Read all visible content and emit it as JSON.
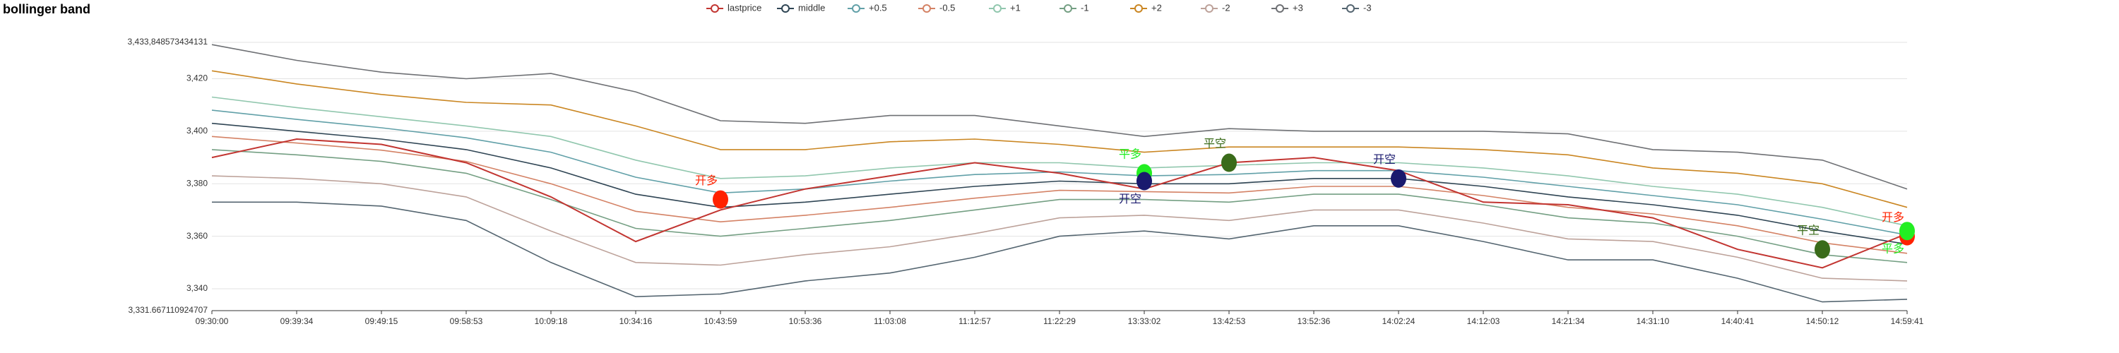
{
  "chart_data": {
    "type": "line",
    "title": "bollinger band",
    "categories": [
      "09:30:00",
      "09:39:34",
      "09:49:15",
      "09:58:53",
      "10:09:18",
      "10:34:16",
      "10:43:59",
      "10:53:36",
      "11:03:08",
      "11:12:57",
      "11:22:29",
      "13:33:02",
      "13:42:53",
      "13:52:36",
      "14:02:24",
      "14:12:03",
      "14:21:34",
      "14:31:10",
      "14:40:41",
      "14:50:12",
      "14:59:41"
    ],
    "ylim": [
      3331.667110924707,
      3433.848573434131
    ],
    "yticks": [
      {
        "value": 3331.667110924707,
        "label": "3,331.667110924707"
      },
      {
        "value": 3340,
        "label": "3,340"
      },
      {
        "value": 3360,
        "label": "3,360"
      },
      {
        "value": 3380,
        "label": "3,380"
      },
      {
        "value": 3400,
        "label": "3,400"
      },
      {
        "value": 3420,
        "label": "3,420"
      },
      {
        "value": 3433.848573434131,
        "label": "3,433,848573434131"
      }
    ],
    "grid": true,
    "series": [
      {
        "name": "lastprice",
        "color": "#c23531",
        "values": [
          3390,
          3397,
          3395,
          3388,
          3375,
          3358,
          3370,
          3378,
          3383,
          3388,
          3384,
          3378,
          3388,
          3390,
          3385,
          3373,
          3372,
          3367,
          3355,
          3348,
          3361
        ]
      },
      {
        "name": "middle",
        "color": "#2f4554",
        "values": [
          3403,
          3400,
          3397,
          3393,
          3386,
          3376,
          3371,
          3373,
          3376,
          3379,
          3381,
          3380,
          3380,
          3382,
          3382,
          3379,
          3375,
          3372,
          3368,
          3362,
          3357
        ]
      },
      {
        "name": "+0.5",
        "color": "#61a0a8",
        "values": [
          3408,
          3404.5,
          3401.3,
          3397.5,
          3392,
          3382.5,
          3376.5,
          3378,
          3381,
          3383.5,
          3384.5,
          3383,
          3383.5,
          3385,
          3385,
          3382.5,
          3379,
          3375.5,
          3372,
          3366.5,
          3360.5
        ]
      },
      {
        "name": "-0.5",
        "color": "#d48265",
        "values": [
          3398,
          3395.5,
          3392.8,
          3388.5,
          3380,
          3369.5,
          3365.5,
          3368,
          3371,
          3374.5,
          3377.5,
          3377,
          3376.5,
          3379,
          3379,
          3375.5,
          3371,
          3368.5,
          3364,
          3357.5,
          3353.5
        ]
      },
      {
        "name": "+1",
        "color": "#91c7ae",
        "values": [
          3413,
          3409,
          3405.5,
          3402,
          3398,
          3389,
          3382,
          3383,
          3386,
          3388,
          3388,
          3386,
          3387,
          3388,
          3388,
          3386,
          3383,
          3379,
          3376,
          3371,
          3364
        ]
      },
      {
        "name": "-1",
        "color": "#749f83",
        "values": [
          3393,
          3391,
          3388.5,
          3384,
          3374,
          3363,
          3360,
          3363,
          3366,
          3370,
          3374,
          3374,
          3373,
          3376,
          3376,
          3372,
          3367,
          3365,
          3360,
          3353,
          3350
        ]
      },
      {
        "name": "+2",
        "color": "#ca8622",
        "values": [
          3423,
          3418,
          3414,
          3411,
          3410,
          3402,
          3393,
          3393,
          3396,
          3397,
          3395,
          3392,
          3394,
          3394,
          3394,
          3393,
          3391,
          3386,
          3384,
          3380,
          3371
        ]
      },
      {
        "name": "-2",
        "color": "#bda29a",
        "values": [
          3383,
          3382,
          3380,
          3375,
          3362,
          3350,
          3349,
          3353,
          3356,
          3361,
          3367,
          3368,
          3366,
          3370,
          3370,
          3365,
          3359,
          3358,
          3352,
          3344,
          3343
        ]
      },
      {
        "name": "+3",
        "color": "#6e7074",
        "values": [
          3433,
          3427,
          3422.5,
          3420,
          3422,
          3415,
          3404,
          3403,
          3406,
          3406,
          3402,
          3398,
          3401,
          3400,
          3400,
          3400,
          3399,
          3393,
          3392,
          3389,
          3378
        ]
      },
      {
        "name": "-3",
        "color": "#546570",
        "values": [
          3373,
          3373,
          3371.5,
          3366,
          3350,
          3337,
          3338,
          3343,
          3346,
          3352,
          3360,
          3362,
          3359,
          3364,
          3364,
          3358,
          3351,
          3351,
          3344,
          3335,
          3336
        ]
      }
    ],
    "annotations": [
      {
        "text": "开多",
        "x": "10:43:59",
        "y": 3374,
        "color": "#ff2200"
      },
      {
        "text": "平多",
        "x": "13:33:02",
        "y": 3384,
        "color": "#22ee22"
      },
      {
        "text": "开空",
        "x": "13:33:02",
        "y": 3381,
        "color": "#1a1a6e"
      },
      {
        "text": "平空",
        "x": "13:42:53",
        "y": 3388,
        "color": "#3a6b1a"
      },
      {
        "text": "开空",
        "x": "14:02:24",
        "y": 3382,
        "color": "#1a1a6e"
      },
      {
        "text": "平空",
        "x": "14:50:12",
        "y": 3355,
        "color": "#3a6b1a"
      },
      {
        "text": "开多",
        "x": "14:59:41",
        "y": 3360,
        "color": "#ff2200"
      },
      {
        "text": "平多",
        "x": "14:59:41",
        "y": 3362,
        "color": "#22ee22"
      }
    ]
  }
}
